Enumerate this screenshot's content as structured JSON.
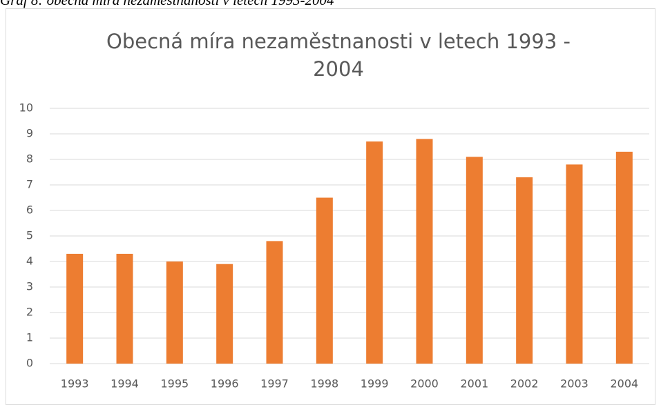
{
  "caption": "Graf 8: obecná míra nezaměstnanosti v letech 1993-2004",
  "chart_data": {
    "type": "bar",
    "title": "Obecná míra nezaměstnanosti v letech 1993 - 2004",
    "categories": [
      "1993",
      "1994",
      "1995",
      "1996",
      "1997",
      "1998",
      "1999",
      "2000",
      "2001",
      "2002",
      "2003",
      "2004"
    ],
    "values": [
      4.3,
      4.3,
      4.0,
      3.9,
      4.8,
      6.5,
      8.7,
      8.8,
      8.1,
      7.3,
      7.8,
      8.3
    ],
    "color": "#ed7d31",
    "ylim": [
      0,
      10
    ],
    "yticks": [
      0,
      1,
      2,
      3,
      4,
      5,
      6,
      7,
      8,
      9,
      10
    ],
    "grid": true
  }
}
